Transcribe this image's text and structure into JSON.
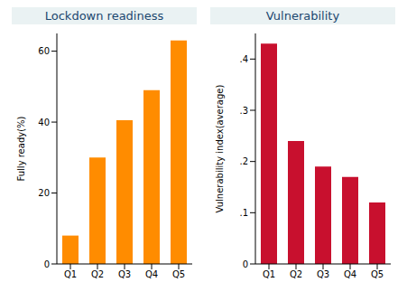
{
  "chart_data": [
    {
      "type": "bar",
      "title": "Lockdown readiness",
      "y_label": "Fully ready(%)",
      "categories": [
        "Q1",
        "Q2",
        "Q3",
        "Q4",
        "Q5"
      ],
      "values": [
        8,
        30,
        40.5,
        49,
        63
      ],
      "color": "#ff8c00",
      "ylim": [
        0,
        65
      ],
      "yticks": [
        0,
        20,
        40,
        60
      ],
      "grid": false
    },
    {
      "type": "bar",
      "title": "Vulnerability",
      "y_label": "Vulnerability index(average)",
      "categories": [
        "Q1",
        "Q2",
        "Q3",
        "Q4",
        "Q5"
      ],
      "values": [
        0.43,
        0.24,
        0.19,
        0.17,
        0.12
      ],
      "color": "#c8102e",
      "ylim": [
        0,
        0.45
      ],
      "yticks": [
        0,
        {
          "value": 0.1,
          "label": ".1"
        },
        {
          "value": 0.2,
          "label": ".2"
        },
        {
          "value": 0.3,
          "label": ".3"
        },
        {
          "value": 0.4,
          "label": ".4"
        }
      ],
      "grid": false
    }
  ]
}
